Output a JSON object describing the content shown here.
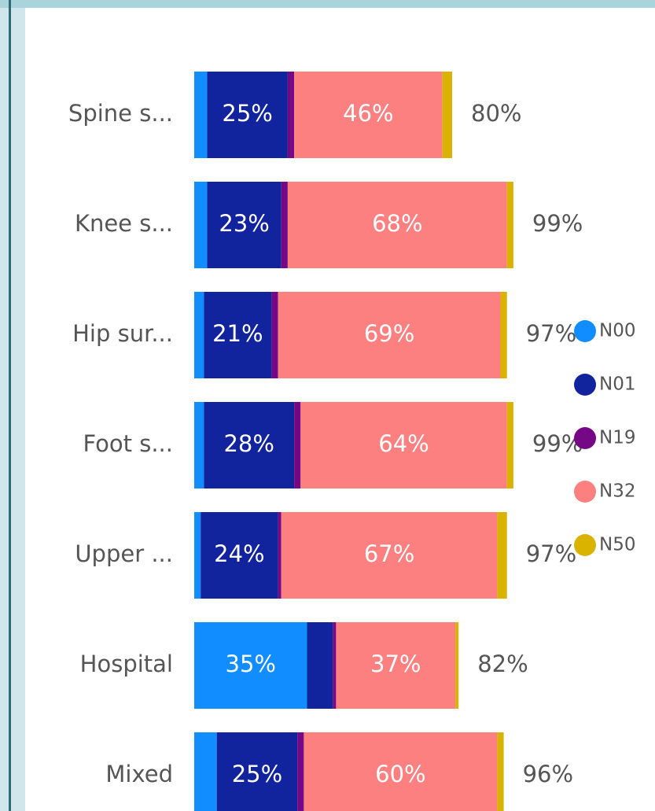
{
  "chart_data": {
    "type": "stacked-bar-horizontal",
    "categories": [
      "Spine s...",
      "Knee s...",
      "Hip sur...",
      "Foot s...",
      "Upper ...",
      "Hospital",
      "Mixed"
    ],
    "xlim": [
      0,
      100
    ],
    "legend": "right",
    "series": [
      {
        "name": "N00",
        "color": "#118dff",
        "values": [
          4,
          4,
          3,
          3,
          2,
          35,
          7
        ],
        "value_labels": [
          null,
          null,
          null,
          null,
          null,
          "35%",
          null
        ]
      },
      {
        "name": "N01",
        "color": "#12239e",
        "values": [
          25,
          23,
          21,
          28,
          24,
          8,
          25
        ],
        "value_labels": [
          "25%",
          "23%",
          "21%",
          "28%",
          "24%",
          null,
          "25%"
        ]
      },
      {
        "name": "N19",
        "color": "#750985",
        "values": [
          2,
          2,
          2,
          2,
          1,
          1,
          2
        ]
      },
      {
        "name": "N32",
        "color": "#fd8080",
        "values": [
          46,
          68,
          69,
          64,
          67,
          37,
          60
        ],
        "value_labels": [
          "46%",
          "68%",
          "69%",
          "64%",
          "67%",
          "37%",
          "60%"
        ]
      },
      {
        "name": "N50",
        "color": "#d9b300",
        "values": [
          3,
          2,
          2,
          2,
          3,
          1,
          2
        ]
      }
    ],
    "totals": [
      80,
      99,
      97,
      99,
      97,
      82,
      96
    ],
    "total_labels": [
      "80%",
      "99%",
      "97%",
      "99%",
      "97%",
      "82%",
      "96%"
    ]
  }
}
